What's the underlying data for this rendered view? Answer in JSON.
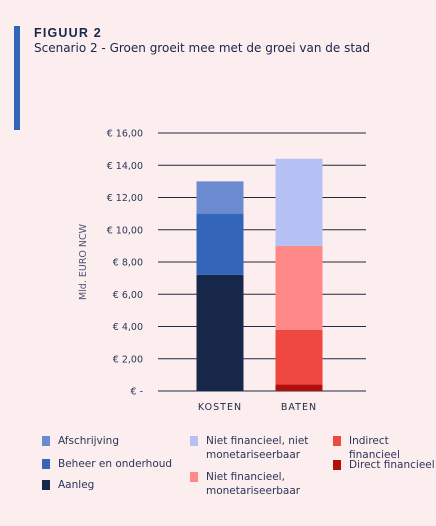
{
  "figure": {
    "label": "FIGUUR 2",
    "title": "Scenario 2 - Groen groeit mee met de groei van de stad"
  },
  "colors": {
    "background": "#fcedef",
    "accent": "#3366b8",
    "gridline": "#1f2a44",
    "afschrijving": "#6b8ad0",
    "beheer": "#3366b8",
    "aanleg": "#17274a",
    "niet_fin_niet_mon": "#b5c1f5",
    "niet_fin_mon": "#ff8888",
    "indirect": "#ee4840",
    "direct": "#b00f0a"
  },
  "chart_data": {
    "type": "bar",
    "stacked": true,
    "categories": [
      "KOSTEN",
      "BATEN"
    ],
    "ylabel": "Mld. EURO NCW",
    "ylim": [
      0,
      16
    ],
    "yticks": [
      0,
      2,
      4,
      6,
      8,
      10,
      12,
      14,
      16
    ],
    "ytick_labels": [
      "€ -",
      "€ 2,00",
      "€ 4,00",
      "€ 6,00",
      "€ 8,00",
      "€ 10,00",
      "€ 12,00",
      "€ 14,00",
      "€ 16,00"
    ],
    "grid": true,
    "legend_position": "bottom",
    "series": [
      {
        "key": "aanleg",
        "name": "Aanleg",
        "color": "#17274a",
        "values": [
          7.2,
          0
        ]
      },
      {
        "key": "beheer",
        "name": "Beheer en onderhoud",
        "color": "#3366b8",
        "values": [
          3.8,
          0
        ]
      },
      {
        "key": "afschrijving",
        "name": "Afschrijving",
        "color": "#6b8ad0",
        "values": [
          2.0,
          0
        ]
      },
      {
        "key": "direct",
        "name": "Direct financieel",
        "color": "#b00f0a",
        "values": [
          0,
          0.4
        ]
      },
      {
        "key": "indirect",
        "name": "Indirect financieel",
        "color": "#ee4840",
        "values": [
          0,
          3.4
        ]
      },
      {
        "key": "niet_fin_mon",
        "name": "Niet financieel, monetariseerbaar",
        "color": "#ff8888",
        "values": [
          0,
          5.2
        ]
      },
      {
        "key": "niet_fin_niet_mon",
        "name": "Niet financieel, niet monetariseerbaar",
        "color": "#b5c1f5",
        "values": [
          0,
          5.4
        ]
      }
    ]
  },
  "legend": [
    {
      "key": "afschrijving",
      "label": "Afschrijving"
    },
    {
      "key": "beheer",
      "label": "Beheer en onderhoud"
    },
    {
      "key": "aanleg",
      "label": "Aanleg"
    },
    {
      "key": "niet_fin_niet_mon",
      "label": "Niet financieel, niet\nmonetariseerbaar"
    },
    {
      "key": "niet_fin_mon",
      "label": "Niet financieel,\nmonetariseerbaar"
    },
    {
      "key": "indirect",
      "label": "Indirect financieel"
    },
    {
      "key": "direct",
      "label": "Direct financieel"
    }
  ]
}
